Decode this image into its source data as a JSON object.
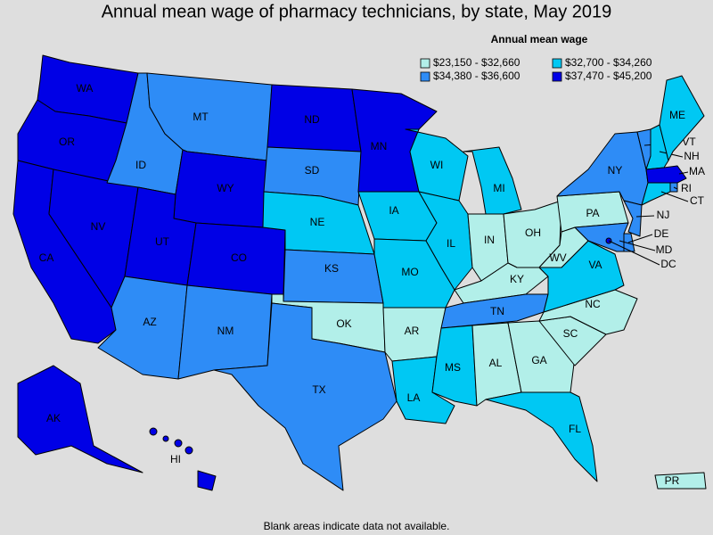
{
  "title": "Annual mean wage of pharmacy technicians, by state, May 2019",
  "legend": {
    "title": "Annual mean wage",
    "items": [
      {
        "label": "$23,150 - $32,660",
        "color": "#b2efe9"
      },
      {
        "label": "$32,700 - $34,260",
        "color": "#00c8f3"
      },
      {
        "label": "$34,380 - $36,600",
        "color": "#2e8cf6"
      },
      {
        "label": "$37,470 - $45,200",
        "color": "#0000e6"
      }
    ]
  },
  "states": [
    {
      "abbr": "WA",
      "class": 3
    },
    {
      "abbr": "OR",
      "class": 3
    },
    {
      "abbr": "CA",
      "class": 3
    },
    {
      "abbr": "NV",
      "class": 3
    },
    {
      "abbr": "ID",
      "class": 2
    },
    {
      "abbr": "MT",
      "class": 2
    },
    {
      "abbr": "WY",
      "class": 3
    },
    {
      "abbr": "UT",
      "class": 3
    },
    {
      "abbr": "CO",
      "class": 3
    },
    {
      "abbr": "AZ",
      "class": 2
    },
    {
      "abbr": "NM",
      "class": 2
    },
    {
      "abbr": "ND",
      "class": 3
    },
    {
      "abbr": "SD",
      "class": 2
    },
    {
      "abbr": "NE",
      "class": 1
    },
    {
      "abbr": "KS",
      "class": 2
    },
    {
      "abbr": "OK",
      "class": 0
    },
    {
      "abbr": "TX",
      "class": 2
    },
    {
      "abbr": "MN",
      "class": 3
    },
    {
      "abbr": "IA",
      "class": 1
    },
    {
      "abbr": "MO",
      "class": 1
    },
    {
      "abbr": "AR",
      "class": 0
    },
    {
      "abbr": "LA",
      "class": 1
    },
    {
      "abbr": "WI",
      "class": 1
    },
    {
      "abbr": "IL",
      "class": 1
    },
    {
      "abbr": "MI",
      "class": 1
    },
    {
      "abbr": "IN",
      "class": 0
    },
    {
      "abbr": "OH",
      "class": 0
    },
    {
      "abbr": "KY",
      "class": 0
    },
    {
      "abbr": "TN",
      "class": 2
    },
    {
      "abbr": "MS",
      "class": 1
    },
    {
      "abbr": "AL",
      "class": 0
    },
    {
      "abbr": "GA",
      "class": 0
    },
    {
      "abbr": "FL",
      "class": 1
    },
    {
      "abbr": "SC",
      "class": 0
    },
    {
      "abbr": "NC",
      "class": 0
    },
    {
      "abbr": "VA",
      "class": 1
    },
    {
      "abbr": "WV",
      "class": 0
    },
    {
      "abbr": "PA",
      "class": 0
    },
    {
      "abbr": "NY",
      "class": 2
    },
    {
      "abbr": "VT",
      "class": 2
    },
    {
      "abbr": "NH",
      "class": 1
    },
    {
      "abbr": "ME",
      "class": 1
    },
    {
      "abbr": "MA",
      "class": 3
    },
    {
      "abbr": "RI",
      "class": 2
    },
    {
      "abbr": "CT",
      "class": 1
    },
    {
      "abbr": "NJ",
      "class": 2
    },
    {
      "abbr": "DE",
      "class": 2
    },
    {
      "abbr": "MD",
      "class": 2
    },
    {
      "abbr": "DC",
      "class": 3
    },
    {
      "abbr": "AK",
      "class": 3
    },
    {
      "abbr": "HI",
      "class": 3
    },
    {
      "abbr": "PR",
      "class": 0
    }
  ],
  "note": "Blank areas indicate data not available."
}
